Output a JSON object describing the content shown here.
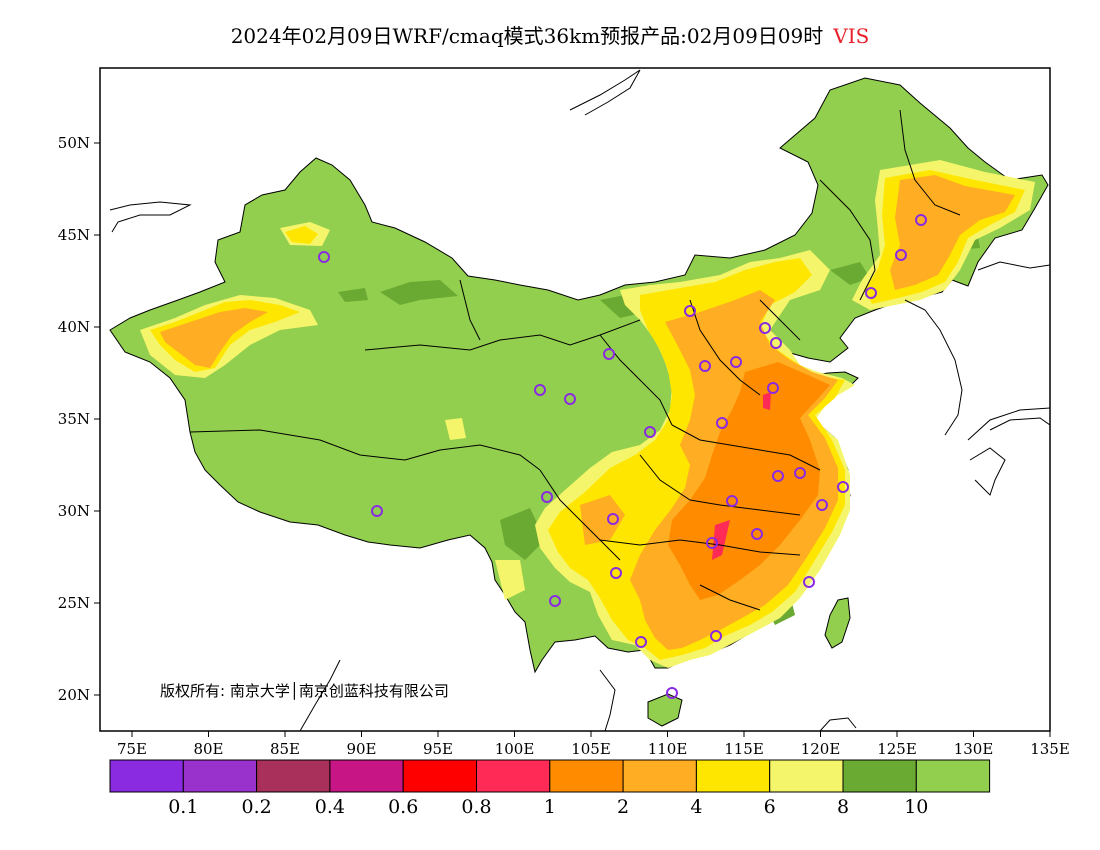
{
  "title": {
    "main": "2024年02月09日WRF/cmaq模式36km预报产品:02月09日09时",
    "variable": "VIS"
  },
  "map": {
    "lon_ticks": [
      "75E",
      "80E",
      "85E",
      "90E",
      "95E",
      "100E",
      "105E",
      "110E",
      "115E",
      "120E",
      "125E",
      "130E",
      "135E"
    ],
    "lat_ticks": [
      "50N",
      "45N",
      "40N",
      "35N",
      "30N",
      "25N",
      "20N"
    ],
    "copyright": "版权所有: 南京大学│南京创蓝科技有限公司",
    "colors": {
      "land_default": "#92cf4e",
      "ocean": "#ffffff"
    }
  },
  "colorbar": {
    "colors": [
      "#8a2be2",
      "#9932cc",
      "#a8305a",
      "#c71585",
      "#ff0000",
      "#ff2a55",
      "#ff8c00",
      "#ffad22",
      "#ffe600",
      "#f5f56b",
      "#6aaa32",
      "#92cf4e"
    ],
    "labels": [
      "0.1",
      "0.2",
      "0.4",
      "0.6",
      "0.8",
      "1",
      "2",
      "4",
      "6",
      "8",
      "10"
    ]
  }
}
